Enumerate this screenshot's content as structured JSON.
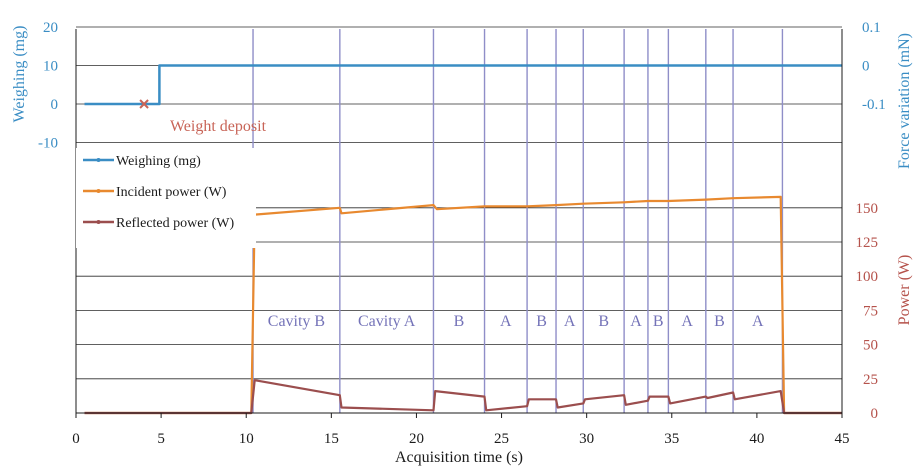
{
  "chart_data": {
    "type": "line",
    "xlabel": "Acquisition time (s)",
    "xlim": [
      0,
      45
    ],
    "xticks": [
      "0",
      "5",
      "10",
      "15",
      "20",
      "25",
      "30",
      "35",
      "40",
      "45"
    ],
    "y_weighing_label": "Weighing (mg)",
    "y_weighing_ticks": [
      "20",
      "10",
      "0",
      "-10"
    ],
    "y_force_label": "Force variation (mN)",
    "y_force_ticks": [
      "0.1",
      "0",
      "-0.1"
    ],
    "y_power_label": "Power (W)",
    "y_power_ticks": [
      "150",
      "125",
      "100",
      "75",
      "50",
      "25",
      "0"
    ],
    "ylim_power": [
      0,
      175
    ],
    "legend": [
      "Weighing (mg)",
      "Incident power (W)",
      "Reflected power (W)"
    ],
    "annotation": "Weight deposit",
    "annotation_point": {
      "x": 4.0,
      "y": 0
    },
    "segment_boundaries": [
      10.4,
      15.5,
      21.0,
      24.0,
      26.5,
      28.2,
      29.8,
      32.2,
      33.6,
      34.8,
      37.0,
      38.6,
      41.5
    ],
    "segments": [
      {
        "label": "Cavity B",
        "start": 10.4,
        "end": 15.5
      },
      {
        "label": "Cavity A",
        "start": 15.5,
        "end": 21.0
      },
      {
        "label": "B",
        "start": 21.0,
        "end": 24.0
      },
      {
        "label": "A",
        "start": 24.0,
        "end": 26.5
      },
      {
        "label": "B",
        "start": 26.5,
        "end": 28.2
      },
      {
        "label": "A",
        "start": 28.2,
        "end": 29.8
      },
      {
        "label": "B",
        "start": 29.8,
        "end": 32.2
      },
      {
        "label": "A",
        "start": 32.2,
        "end": 33.6
      },
      {
        "label": "B",
        "start": 33.6,
        "end": 34.8
      },
      {
        "label": "A",
        "start": 34.8,
        "end": 37.0
      },
      {
        "label": "B",
        "start": 37.0,
        "end": 38.6
      },
      {
        "label": "A",
        "start": 38.6,
        "end": 41.5
      }
    ],
    "series": [
      {
        "name": "Weighing (mg)",
        "color": "#3a8dc4",
        "axis": "weighing",
        "x": [
          0.5,
          4.9,
          4.9,
          45
        ],
        "y": [
          0,
          0,
          10,
          10
        ]
      },
      {
        "name": "Incident power (W)",
        "color": "#e8892f",
        "axis": "power",
        "x": [
          0.5,
          10.3,
          10.5,
          15.5,
          15.6,
          21.0,
          21.2,
          24.0,
          26.5,
          28.2,
          29.8,
          32.2,
          33.6,
          34.8,
          37.0,
          38.6,
          41.4,
          41.6,
          45
        ],
        "y": [
          0,
          0,
          145,
          150,
          146,
          152,
          149,
          151,
          151,
          152,
          153,
          154,
          155,
          155,
          156,
          157,
          158,
          0,
          0
        ]
      },
      {
        "name": "Reflected power (W)",
        "color": "#9b4e4e",
        "axis": "power",
        "x": [
          0.5,
          10.3,
          10.5,
          15.5,
          15.6,
          21.0,
          21.1,
          24.0,
          24.1,
          26.5,
          26.6,
          28.2,
          28.3,
          29.8,
          29.9,
          32.2,
          32.3,
          33.6,
          33.7,
          34.8,
          34.9,
          37.0,
          37.1,
          38.6,
          38.7,
          41.4,
          41.6,
          45
        ],
        "y": [
          0,
          0,
          24,
          13,
          4,
          2,
          16,
          12,
          2,
          5,
          10,
          10,
          4,
          7,
          10,
          13,
          6,
          9,
          12,
          12,
          7,
          12,
          11,
          15,
          10,
          16,
          0,
          0
        ]
      }
    ]
  }
}
